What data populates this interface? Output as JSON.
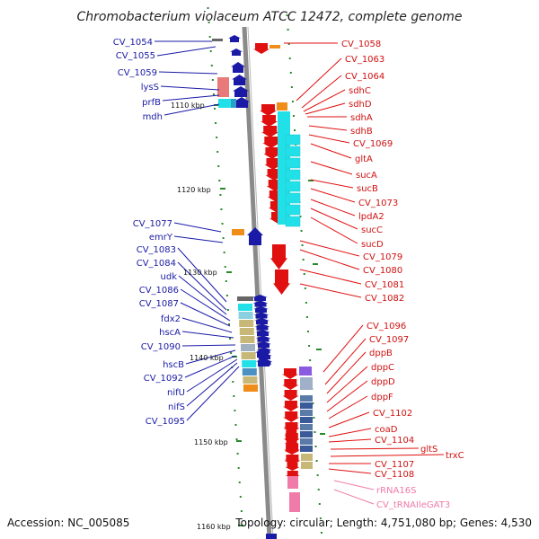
{
  "title": "Chromobacterium violaceum ATCC 12472, complete genome",
  "footer": {
    "accession": "Accession: NC_005085",
    "summary": "Topology: circular; Length: 4,751,080 bp; Genes: 4,530"
  },
  "scale_labels": [
    "1110 kbp",
    "1120 kbp",
    "1130 kbp",
    "1140 kbp",
    "1150 kbp",
    "1160 kbp"
  ],
  "left_genes": [
    "CV_1054",
    "CV_1055",
    "CV_1059",
    "lysS",
    "prfB",
    "mdh",
    "CV_1077",
    "emrY",
    "CV_1083",
    "CV_1084",
    "udk",
    "CV_1086",
    "CV_1087",
    "fdx2",
    "hscA",
    "CV_1090",
    "hscB",
    "CV_1092",
    "nifU",
    "nifS",
    "CV_1095"
  ],
  "right_genes": [
    "CV_1058",
    "CV_1063",
    "CV_1064",
    "sdhC",
    "sdhD",
    "sdhA",
    "sdhB",
    "CV_1069",
    "gltA",
    "sucA",
    "sucB",
    "CV_1073",
    "lpdA2",
    "sucC",
    "sucD",
    "CV_1079",
    "CV_1080",
    "CV_1081",
    "CV_1082",
    "CV_1096",
    "CV_1097",
    "dppB",
    "dppC",
    "dppD",
    "dppF",
    "CV_1102",
    "coaD",
    "CV_1104",
    "gltS",
    "trxC",
    "CV_1107",
    "CV_1108"
  ],
  "rna_genes": [
    "rRNA16S",
    "CV_tRNAIleGAT3"
  ],
  "colors": {
    "forward": "#1a1aa6",
    "reverse": "#e01010",
    "rna": "#f07aa8",
    "backbone": "#8a8a8a",
    "scale": "#2a8a2a",
    "cyan": "#22e0e8",
    "orange": "#f08c1a",
    "khaki": "#c8b878",
    "purple": "#8a5ae0",
    "slate": "#5a7aa8"
  }
}
